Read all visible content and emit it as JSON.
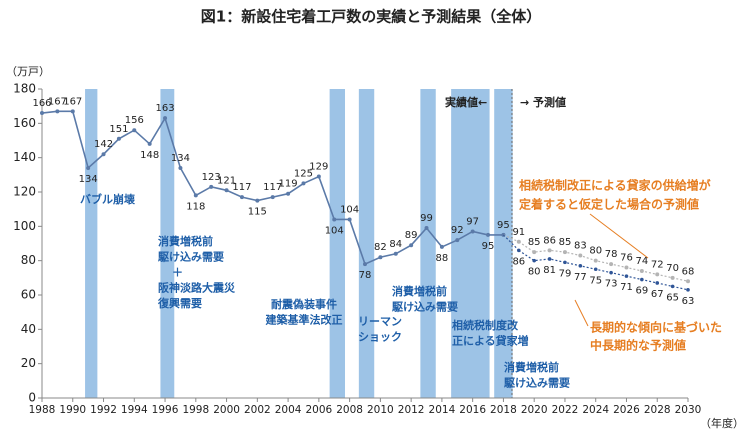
{
  "chart_data": {
    "type": "line",
    "title": "図1：新設住宅着工戸数の実績と予測結果（全体）",
    "y_label": "（万戸）",
    "x_label": "（年度）",
    "x": [
      1988,
      1989,
      1990,
      1991,
      1992,
      1993,
      1994,
      1995,
      1996,
      1997,
      1998,
      1999,
      2000,
      2001,
      2002,
      2003,
      2004,
      2005,
      2006,
      2007,
      2008,
      2009,
      2010,
      2011,
      2012,
      2013,
      2014,
      2015,
      2016,
      2017,
      2018,
      2019,
      2020,
      2021,
      2022,
      2023,
      2024,
      2025,
      2026,
      2027,
      2028,
      2029,
      2030
    ],
    "series": [
      {
        "name": "実績値",
        "color": "#5b7aa8",
        "values": [
          166,
          167,
          167,
          134,
          142,
          151,
          156,
          148,
          163,
          134,
          118,
          123,
          121,
          117,
          115,
          117,
          119,
          125,
          129,
          104,
          104,
          78,
          82,
          84,
          89,
          99,
          88,
          92,
          97,
          95,
          95,
          null,
          null,
          null,
          null,
          null,
          null,
          null,
          null,
          null,
          null,
          null,
          null
        ]
      },
      {
        "name": "相続税制改正による貸家の供給増が定着すると仮定した場合の予測値",
        "color": "#b4b4b4",
        "values": [
          null,
          null,
          null,
          null,
          null,
          null,
          null,
          null,
          null,
          null,
          null,
          null,
          null,
          null,
          null,
          null,
          null,
          null,
          null,
          null,
          null,
          null,
          null,
          null,
          null,
          null,
          null,
          null,
          null,
          null,
          null,
          91,
          85,
          86,
          85,
          83,
          80,
          78,
          76,
          74,
          72,
          70,
          68
        ]
      },
      {
        "name": "長期的な傾向に基づいた中長期的な予測値",
        "color": "#2f5597",
        "values": [
          null,
          null,
          null,
          null,
          null,
          null,
          null,
          null,
          null,
          null,
          null,
          null,
          null,
          null,
          null,
          null,
          null,
          null,
          null,
          null,
          null,
          null,
          null,
          null,
          null,
          null,
          null,
          null,
          null,
          null,
          null,
          86,
          80,
          81,
          79,
          77,
          75,
          73,
          71,
          69,
          67,
          65,
          63
        ]
      }
    ],
    "xlim": [
      1988,
      2030
    ],
    "xticks": [
      1988,
      1990,
      1992,
      1994,
      1996,
      1998,
      2000,
      2002,
      2004,
      2006,
      2008,
      2010,
      2012,
      2014,
      2016,
      2018,
      2020,
      2022,
      2024,
      2026,
      2028,
      2030
    ],
    "ylim": [
      0,
      180
    ],
    "yticks": [
      0,
      20,
      40,
      60,
      80,
      100,
      120,
      140,
      160,
      180
    ],
    "shaded_periods": [
      [
        1990.8,
        1991.6
      ],
      [
        1995.7,
        1996.6
      ],
      [
        2006.7,
        2007.7
      ],
      [
        2008.6,
        2009.6
      ],
      [
        2012.6,
        2013.6
      ],
      [
        2014.6,
        2017.1
      ],
      [
        2017.4,
        2018.6
      ]
    ],
    "shade_color": "#9dc3e6",
    "annotations": [
      {
        "lines": [
          "バブル崩壊"
        ]
      },
      {
        "lines": [
          "消費増税前",
          "駆け込み需要",
          "＋",
          "阪神淡路大震災",
          "復興需要"
        ]
      },
      {
        "lines": [
          "耐震偽装事件",
          "建築基準法改正"
        ]
      },
      {
        "lines": [
          "リーマン",
          "ショック"
        ]
      },
      {
        "lines": [
          "消費増税前",
          "駆け込み需要"
        ]
      },
      {
        "lines": [
          "相続税制度改",
          "正による貸家増"
        ]
      },
      {
        "lines": [
          "消費増税前",
          "駆け込み需要"
        ]
      },
      {
        "lines": [
          "実績値←"
        ]
      },
      {
        "lines": [
          "→ 予測値"
        ]
      },
      {
        "lines": [
          "相続税制改正による貸家の供給増が",
          "定着すると仮定した場合の予測値"
        ]
      },
      {
        "lines": [
          "長期的な傾向に基づいた",
          "中長期的な予測値"
        ]
      }
    ]
  }
}
